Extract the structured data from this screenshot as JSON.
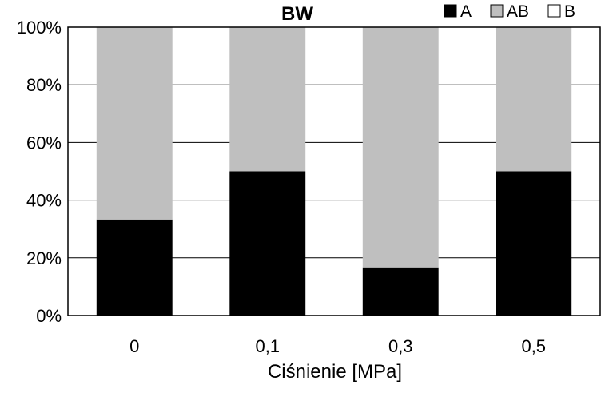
{
  "chart_data": {
    "type": "bar",
    "stacked": true,
    "percent": true,
    "title": "BW",
    "xlabel": "Ciśnienie [MPa]",
    "ylabel": "",
    "categories": [
      "0",
      "0,1",
      "0,3",
      "0,5"
    ],
    "ylim": [
      0,
      100
    ],
    "yticks": [
      "0%",
      "20%",
      "40%",
      "60%",
      "80%",
      "100%"
    ],
    "grid": true,
    "legend_position": "top-right",
    "series": [
      {
        "name": "A",
        "color": "#000000",
        "values": [
          33.3,
          50,
          16.7,
          50
        ]
      },
      {
        "name": "AB",
        "color": "#bfbfbf",
        "values": [
          66.7,
          50,
          83.3,
          50
        ]
      },
      {
        "name": "B",
        "color": "#ffffff",
        "values": [
          0,
          0,
          0,
          0
        ]
      }
    ]
  }
}
